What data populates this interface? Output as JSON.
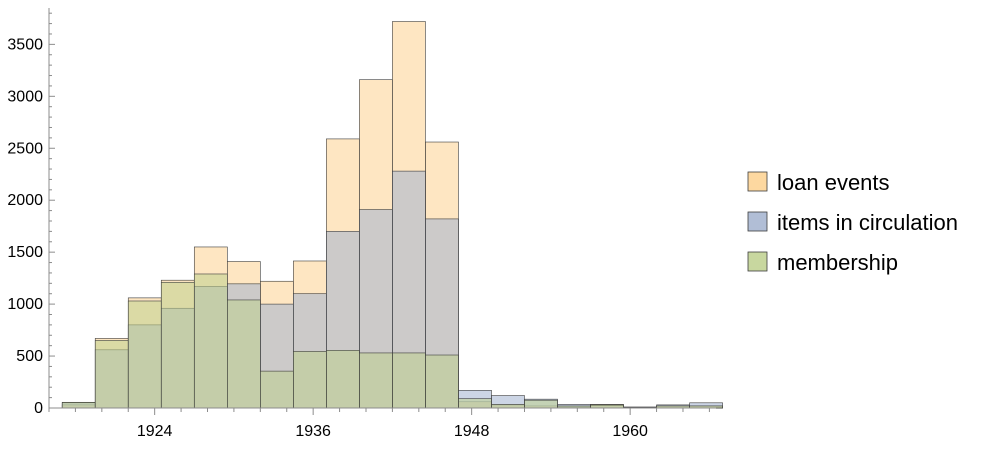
{
  "chart_data": {
    "type": "bar",
    "title": "",
    "xlabel": "",
    "ylabel": "",
    "bin_width": 2.5,
    "bin_starts": [
      1917,
      1919.5,
      1922,
      1924.5,
      1927,
      1929.5,
      1932,
      1934.5,
      1937,
      1939.5,
      1942,
      1944.5,
      1947,
      1949.5,
      1952,
      1954.5,
      1957,
      1959.5,
      1962,
      1964.5
    ],
    "xlim": [
      1916,
      1966.5
    ],
    "ylim": [
      0,
      3850
    ],
    "x_ticks": [
      1924,
      1936,
      1948,
      1960
    ],
    "y_ticks": [
      0,
      500,
      1000,
      1500,
      2000,
      2500,
      3000,
      3500
    ],
    "grid": false,
    "legend_position": "right",
    "series": [
      {
        "name": "loan events",
        "color": "#fdd18f",
        "values": [
          30,
          670,
          1060,
          1230,
          1550,
          1410,
          1220,
          1415,
          2590,
          3160,
          3720,
          2560,
          60,
          30,
          20,
          10,
          35,
          5,
          20,
          20
        ]
      },
      {
        "name": "items in circulation",
        "color": "#a3b3cf",
        "values": [
          50,
          560,
          800,
          960,
          1170,
          1195,
          1000,
          1100,
          1700,
          1910,
          2280,
          1820,
          170,
          120,
          85,
          35,
          25,
          10,
          30,
          50
        ]
      },
      {
        "name": "membership",
        "color": "#bed08e",
        "values": [
          55,
          650,
          1030,
          1210,
          1290,
          1040,
          355,
          545,
          555,
          530,
          530,
          510,
          90,
          35,
          75,
          20,
          30,
          5,
          20,
          20
        ]
      }
    ]
  }
}
